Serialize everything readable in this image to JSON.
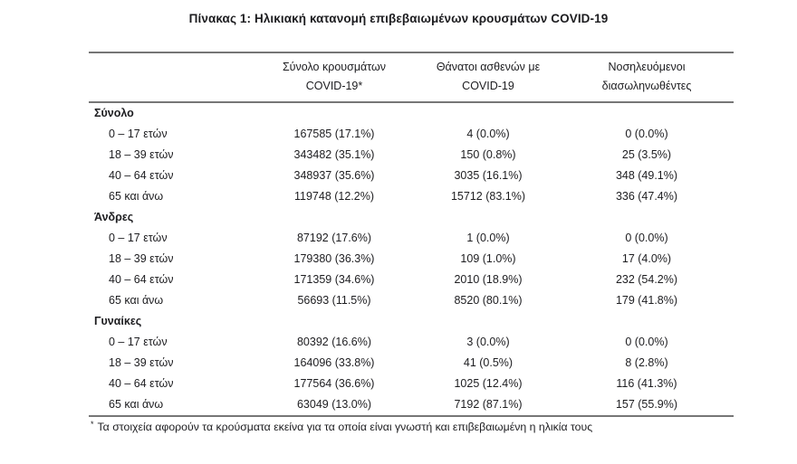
{
  "title": "Πίνακας 1: Ηλικιακή κατανομή επιβεβαιωμένων κρουσμάτων COVID-19",
  "table": {
    "headers": {
      "rowgroup": "",
      "cases_line1": "Σύνολο κρουσμάτων",
      "cases_line2": "COVID-19*",
      "deaths_line1": "Θάνατοι ασθενών με",
      "deaths_line2": "COVID-19",
      "intubated_line1": "Νοσηλευόμενοι",
      "intubated_line2": "διασωληνωθέντες"
    },
    "sections": [
      {
        "label": "Σύνολο",
        "rows": [
          {
            "label": "0 – 17 ετών",
            "cases": "167585 (17.1%)",
            "deaths": "4 (0.0%)",
            "intubated": "0 (0.0%)"
          },
          {
            "label": "18 – 39 ετών",
            "cases": "343482 (35.1%)",
            "deaths": "150 (0.8%)",
            "intubated": "25 (3.5%)"
          },
          {
            "label": "40 – 64 ετών",
            "cases": "348937 (35.6%)",
            "deaths": "3035 (16.1%)",
            "intubated": "348 (49.1%)"
          },
          {
            "label": "65 και άνω",
            "cases": "119748 (12.2%)",
            "deaths": "15712 (83.1%)",
            "intubated": "336 (47.4%)"
          }
        ]
      },
      {
        "label": "Άνδρες",
        "rows": [
          {
            "label": "0 – 17 ετών",
            "cases": "87192 (17.6%)",
            "deaths": "1 (0.0%)",
            "intubated": "0 (0.0%)"
          },
          {
            "label": "18 – 39 ετών",
            "cases": "179380 (36.3%)",
            "deaths": "109 (1.0%)",
            "intubated": "17 (4.0%)"
          },
          {
            "label": "40 – 64 ετών",
            "cases": "171359 (34.6%)",
            "deaths": "2010 (18.9%)",
            "intubated": "232 (54.2%)"
          },
          {
            "label": "65 και άνω",
            "cases": "56693 (11.5%)",
            "deaths": "8520 (80.1%)",
            "intubated": "179 (41.8%)"
          }
        ]
      },
      {
        "label": "Γυναίκες",
        "rows": [
          {
            "label": "0 – 17 ετών",
            "cases": "80392 (16.6%)",
            "deaths": "3 (0.0%)",
            "intubated": "0 (0.0%)"
          },
          {
            "label": "18 – 39 ετών",
            "cases": "164096 (33.8%)",
            "deaths": "41 (0.5%)",
            "intubated": "8 (2.8%)"
          },
          {
            "label": "40 – 64 ετών",
            "cases": "177564 (36.6%)",
            "deaths": "1025 (12.4%)",
            "intubated": "116 (41.3%)"
          },
          {
            "label": "65 και άνω",
            "cases": "63049 (13.0%)",
            "deaths": "7192 (87.1%)",
            "intubated": "157 (55.9%)"
          }
        ]
      }
    ]
  },
  "footnote": {
    "marker": "*",
    "text": "Τα στοιχεία αφορούν τα κρούσματα εκείνα για τα οποία είναι γνωστή και επιβεβαιωμένη η ηλικία τους"
  },
  "colors": {
    "background": "#ffffff",
    "text": "#1d1d20",
    "border": "#767676"
  }
}
